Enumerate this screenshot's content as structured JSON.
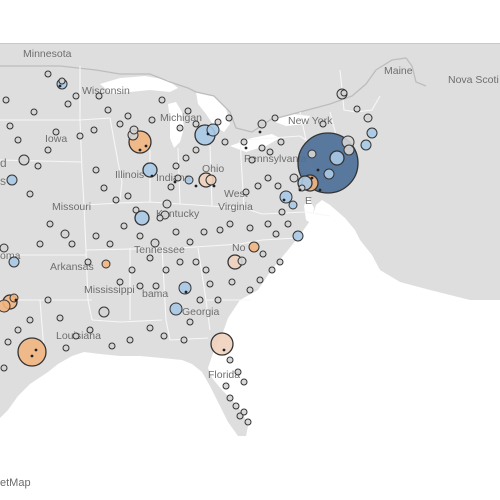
{
  "attribution": "etMap",
  "labels": {
    "minnesota": "Minnesota",
    "wisconsin": "Wisconsin",
    "michigan": "Michigan",
    "iowa": "Iowa",
    "illinois": "Illinois",
    "indiana": "Indiana",
    "ohio": "Ohio",
    "pennsylvania": "Pennsylvania",
    "new_york": "New York",
    "maine": "Maine",
    "nova_scotia": "Nova Scoti",
    "missouri": "Missouri",
    "kentucky": "Kentucky",
    "west_virginia": "West\nVirginia",
    "tennessee": "Tennessee",
    "north_carolina": "No",
    "arkansas": "Arkansas",
    "oklahoma": "oma",
    "mississippi": "Mississippi",
    "alabama": "bama",
    "georgia": "Georgia",
    "louisiana": "Louisiana",
    "florida": "Florida",
    "partial_d": "d",
    "partial_s": "s",
    "partial_e": "E"
  },
  "colors": {
    "land": "#dedede",
    "water": "#ffffff",
    "state_border": "#f5f5f5",
    "country_border": "#bfbfbf",
    "blue_bubble": "#a9c9e6",
    "blue_big": "#4d6f98",
    "orange_bubble": "#f2b57f",
    "peach_bubble": "#f0d3bd",
    "gray_bubble": "#d4d4d4",
    "outline": "#333333"
  }
}
